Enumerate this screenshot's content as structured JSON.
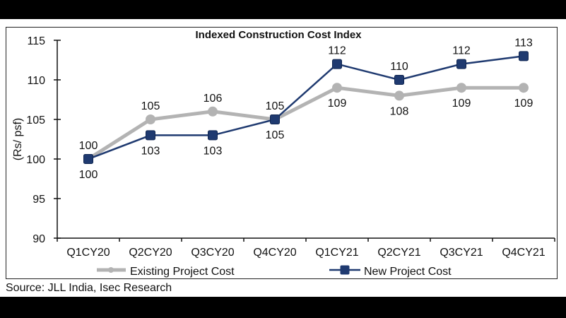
{
  "source": "Source: JLL India, Isec Research",
  "chart_data": {
    "type": "line",
    "title": "Indexed Construction Cost Index",
    "xlabel": "",
    "ylabel": "(Rs/ psf)",
    "categories": [
      "Q1CY20",
      "Q2CY20",
      "Q3CY20",
      "Q4CY20",
      "Q1CY21",
      "Q2CY21",
      "Q3CY21",
      "Q4CY21"
    ],
    "ylim": [
      90,
      115
    ],
    "yticks": [
      90,
      95,
      100,
      105,
      110,
      115
    ],
    "grid": false,
    "legend_position": "bottom",
    "series": [
      {
        "name": "Existing Project Cost",
        "values": [
          100,
          105,
          106,
          105,
          109,
          108,
          109,
          109
        ],
        "color": "#b3b3b3",
        "marker": "circle",
        "label_position": [
          "above",
          "above",
          "above",
          "above",
          "below",
          "below",
          "below",
          "below"
        ]
      },
      {
        "name": "New Project Cost",
        "values": [
          100,
          103,
          103,
          105,
          112,
          110,
          112,
          113
        ],
        "color": "#1f3a70",
        "marker": "square",
        "label_position": [
          "below",
          "below",
          "below",
          "below",
          "above",
          "above",
          "above",
          "above"
        ]
      }
    ]
  }
}
